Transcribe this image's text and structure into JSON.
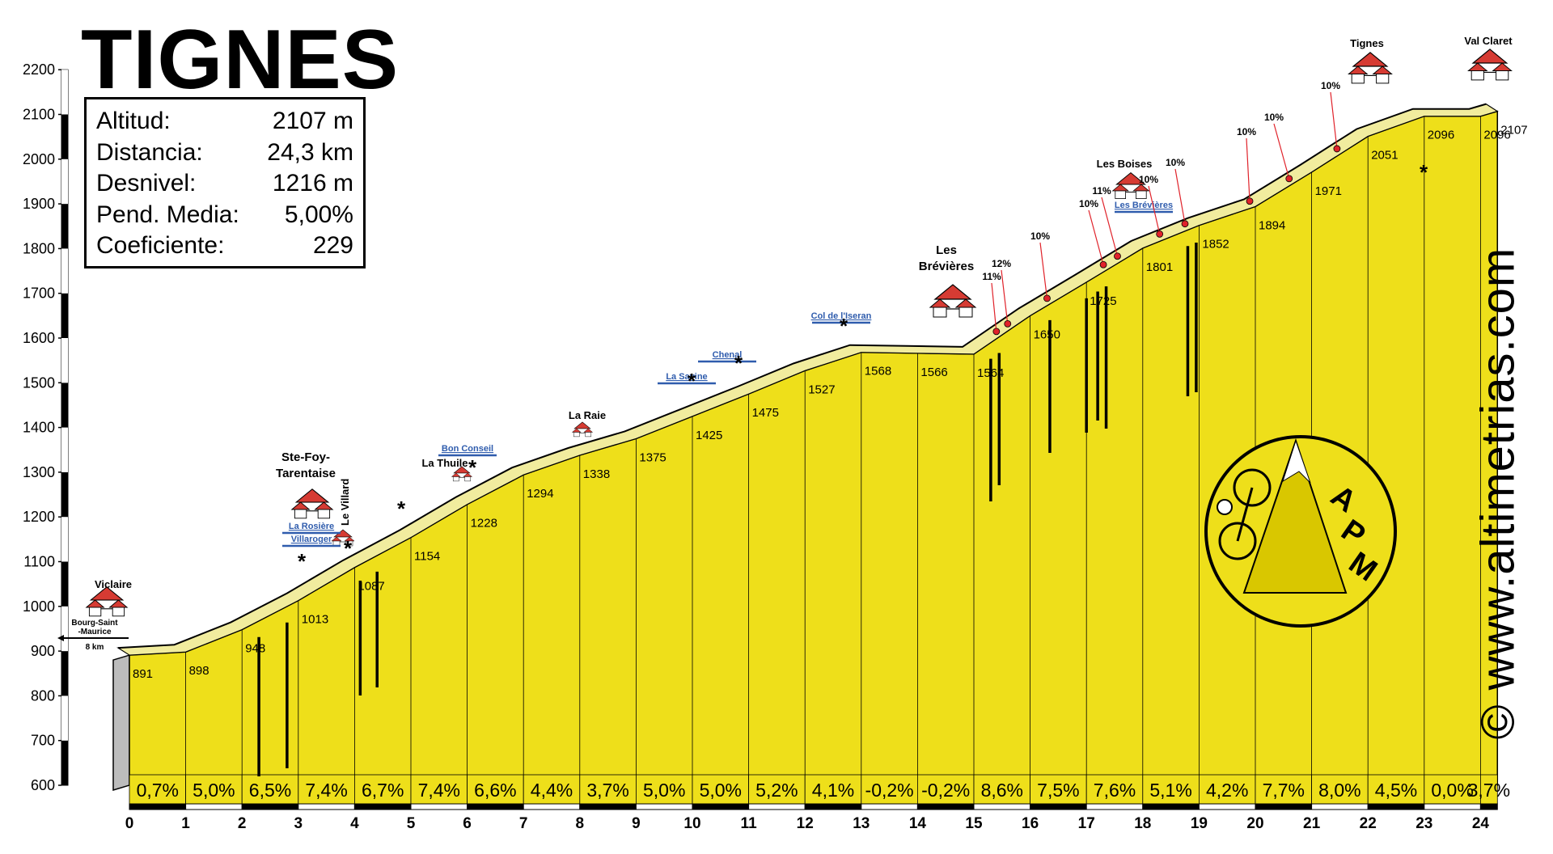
{
  "chart_data": {
    "type": "area",
    "title": "TIGNES",
    "info": [
      {
        "label": "Altitud:",
        "value": "2107 m"
      },
      {
        "label": "Distancia:",
        "value": "24,3 km"
      },
      {
        "label": "Desnivel:",
        "value": "1216 m"
      },
      {
        "label": "Pend. Media:",
        "value": "5,00%"
      },
      {
        "label": "Coeficiente:",
        "value": "229"
      }
    ],
    "ylim": [
      600,
      2200
    ],
    "xlim": [
      0,
      24.3
    ],
    "y_ticks": [
      "600",
      "700",
      "800",
      "900",
      "1000",
      "1100",
      "1200",
      "1300",
      "1400",
      "1500",
      "1600",
      "1700",
      "1800",
      "1900",
      "2000",
      "2100",
      "2200"
    ],
    "x_ticks": [
      "0",
      "1",
      "2",
      "3",
      "4",
      "5",
      "6",
      "7",
      "8",
      "9",
      "10",
      "11",
      "12",
      "13",
      "14",
      "15",
      "16",
      "17",
      "18",
      "19",
      "20",
      "21",
      "22",
      "23",
      "24"
    ],
    "profile_km": [
      0,
      1,
      2,
      3,
      4,
      5,
      6,
      7,
      8,
      9,
      10,
      11,
      12,
      13,
      14,
      15,
      16,
      17,
      18,
      19,
      20,
      21,
      22,
      23,
      24,
      24.3
    ],
    "profile_alt": [
      891,
      898,
      948,
      1013,
      1087,
      1154,
      1228,
      1294,
      1338,
      1375,
      1425,
      1475,
      1527,
      1568,
      1566,
      1564,
      1650,
      1725,
      1801,
      1852,
      1894,
      1971,
      2051,
      2096,
      2096,
      2107
    ],
    "altitude_labels": [
      "891",
      "898",
      "948",
      "1013",
      "1087",
      "1154",
      "1228",
      "1294",
      "1338",
      "1375",
      "1425",
      "1475",
      "1527",
      "1568",
      "1566",
      "1564",
      "1650",
      "1725",
      "1801",
      "1852",
      "1894",
      "1971",
      "2051",
      "2096",
      "2096",
      "2107"
    ],
    "gradient_labels": [
      "0,7%",
      "5,0%",
      "6,5%",
      "7,4%",
      "6,7%",
      "7,4%",
      "6,6%",
      "4,4%",
      "3,7%",
      "5,0%",
      "5,0%",
      "5,2%",
      "4,1%",
      "-0,2%",
      "-0,2%",
      "8,6%",
      "7,5%",
      "7,6%",
      "5,1%",
      "4,2%",
      "7,7%",
      "8,0%",
      "4,5%",
      "0,0%",
      "3,7%"
    ],
    "places": [
      {
        "name": "Viclaire",
        "km": 0.2
      },
      {
        "name": "Ste-Foy-Tarentaise",
        "km": 3.1
      },
      {
        "name": "Le Villard",
        "km": 3.75
      },
      {
        "name": "La Thuile",
        "km": 5.6
      },
      {
        "name": "La Raie",
        "km": 8.1
      },
      {
        "name": "Les Brévières",
        "km": 14.6
      },
      {
        "name": "Les Boises",
        "km": 17.7
      },
      {
        "name": "Tignes",
        "km": 22.0
      },
      {
        "name": "Val Claret",
        "km": 24.0
      }
    ],
    "road_labels": [
      {
        "text": "Bourg-Saint-Maurice",
        "dist": "8 km"
      },
      {
        "text": "La Rosière"
      },
      {
        "text": "Villaroger"
      },
      {
        "text": "Bon Conseil"
      },
      {
        "text": "La Savine"
      },
      {
        "text": "Chenal"
      },
      {
        "text": "Col de l'Iseran"
      },
      {
        "text": "Les Brévières"
      }
    ],
    "ramps": [
      {
        "text": "11%",
        "km": 15.4
      },
      {
        "text": "12%",
        "km": 15.6
      },
      {
        "text": "10%",
        "km": 16.3
      },
      {
        "text": "10%",
        "km": 17.3
      },
      {
        "text": "11%",
        "km": 17.55
      },
      {
        "text": "10%",
        "km": 18.3
      },
      {
        "text": "10%",
        "km": 18.75
      },
      {
        "text": "10%",
        "km": 19.9
      },
      {
        "text": "10%",
        "km": 20.6
      },
      {
        "text": "10%",
        "km": 21.45
      }
    ],
    "logo_letters": [
      "A",
      "P",
      "M"
    ],
    "watermark": "© www.altimetrias.com",
    "colors": {
      "fill": "#eedf1a",
      "road": "#f1ec9e",
      "marker": "#e0222a",
      "blue": "#2f5cad",
      "house_roof": "#d63b33"
    }
  }
}
